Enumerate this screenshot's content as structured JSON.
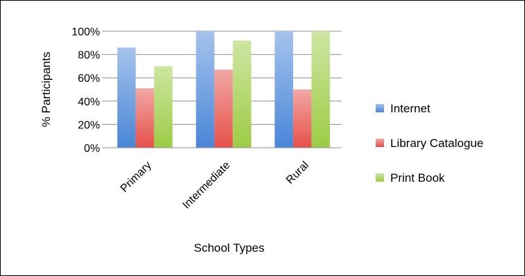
{
  "chart_data": {
    "type": "bar",
    "categories": [
      "Primary",
      "Intermediate",
      "Rural"
    ],
    "series": [
      {
        "name": "Internet",
        "values": [
          86,
          100,
          100
        ],
        "color": "#4a86d8"
      },
      {
        "name": "Library Catalogue",
        "values": [
          51,
          67,
          50
        ],
        "color": "#e5504a"
      },
      {
        "name": "Print Book",
        "values": [
          70,
          92,
          100
        ],
        "color": "#9ccc45"
      }
    ],
    "title": "",
    "xlabel": "School Types",
    "ylabel": "% Participants",
    "ylim": [
      0,
      100
    ],
    "yticks": [
      "0%",
      "20%",
      "40%",
      "60%",
      "80%",
      "100%"
    ],
    "grid": true,
    "legend_position": "right"
  }
}
